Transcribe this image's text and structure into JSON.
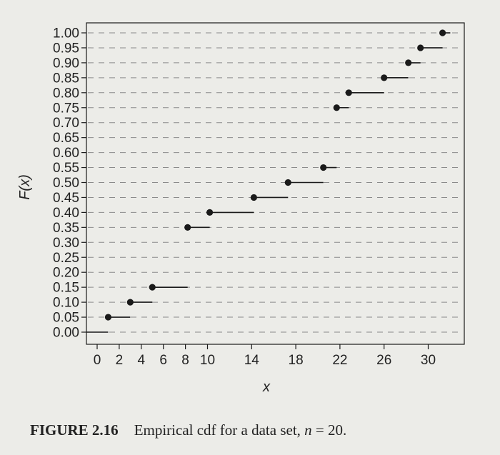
{
  "chart_data": {
    "type": "line",
    "subtype": "step",
    "xlabel": "x",
    "ylabel": "F(x)",
    "xlim": [
      -1,
      32
    ],
    "ylim": [
      0,
      1.05
    ],
    "x_ticks": [
      0,
      2,
      4,
      6,
      8,
      10,
      14,
      18,
      22,
      26,
      30
    ],
    "y_ticks": [
      "0.00",
      "0.05",
      "0.10",
      "0.15",
      "0.20",
      "0.25",
      "0.30",
      "0.35",
      "0.40",
      "0.45",
      "0.50",
      "0.55",
      "0.60",
      "0.65",
      "0.70",
      "0.75",
      "0.80",
      "0.85",
      "0.90",
      "0.95",
      "1.00"
    ],
    "y_grid": "dashed",
    "series": [
      {
        "steps": [
          {
            "x0": -1,
            "x1": 1.0,
            "y": 0.0,
            "dot": false
          },
          {
            "x0": 1.0,
            "x1": 3.0,
            "y": 0.05,
            "dot": true
          },
          {
            "x0": 3.0,
            "x1": 5.0,
            "y": 0.1,
            "dot": true
          },
          {
            "x0": 5.0,
            "x1": 8.2,
            "y": 0.15,
            "dot": true
          },
          {
            "x0": 8.2,
            "x1": 10.2,
            "y": 0.35,
            "dot": true
          },
          {
            "x0": 10.2,
            "x1": 14.2,
            "y": 0.4,
            "dot": true
          },
          {
            "x0": 14.2,
            "x1": 17.3,
            "y": 0.45,
            "dot": true
          },
          {
            "x0": 17.3,
            "x1": 20.5,
            "y": 0.5,
            "dot": true
          },
          {
            "x0": 20.5,
            "x1": 21.7,
            "y": 0.55,
            "dot": true
          },
          {
            "x0": 21.7,
            "x1": 22.8,
            "y": 0.75,
            "dot": true
          },
          {
            "x0": 22.8,
            "x1": 26.0,
            "y": 0.8,
            "dot": true
          },
          {
            "x0": 26.0,
            "x1": 28.2,
            "y": 0.85,
            "dot": true
          },
          {
            "x0": 28.2,
            "x1": 29.3,
            "y": 0.9,
            "dot": true
          },
          {
            "x0": 29.3,
            "x1": 31.3,
            "y": 0.95,
            "dot": true
          },
          {
            "x0": 31.3,
            "x1": 32.0,
            "y": 1.0,
            "dot": true
          }
        ]
      }
    ]
  },
  "caption": {
    "label": "FIGURE 2.16",
    "text_before": "Empirical cdf for a data set, ",
    "var": "n",
    "text_after": " = 20."
  },
  "colors": {
    "ink": "#1a1a1a",
    "grid": "#8a8a8a",
    "background": "#ecece8"
  }
}
